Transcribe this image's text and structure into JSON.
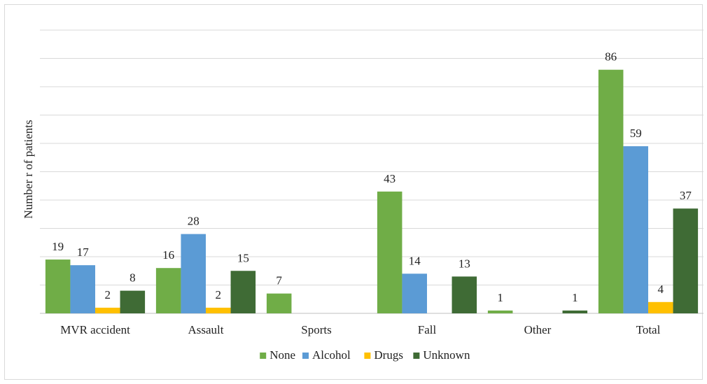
{
  "chart_data": {
    "type": "bar",
    "ylabel": "Number r of  patients",
    "xlabel": "",
    "categories": [
      "MVR accident",
      "Assault",
      "Sports",
      "Fall",
      "Other",
      "Total"
    ],
    "ylim": [
      0,
      100
    ],
    "grid": true,
    "legend_position": "bottom",
    "series": [
      {
        "name": "None",
        "color": "#70ad47",
        "values": [
          19,
          16,
          7,
          43,
          1,
          86
        ]
      },
      {
        "name": "Alcohol",
        "color": "#5b9bd5",
        "values": [
          17,
          28,
          null,
          14,
          null,
          59
        ]
      },
      {
        "name": "Drugs",
        "color": "#ffc000",
        "values": [
          2,
          2,
          null,
          null,
          null,
          4
        ]
      },
      {
        "name": "Unknown",
        "color": "#3f6b35",
        "values": [
          8,
          15,
          null,
          13,
          1,
          37
        ]
      }
    ]
  }
}
